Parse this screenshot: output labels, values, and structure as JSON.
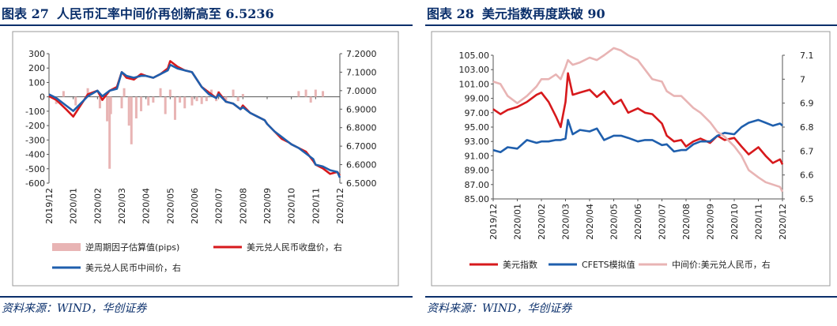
{
  "left": {
    "label": "图表 27",
    "title": "人民币汇率中间价再创新高至 6.5236",
    "source": "资料来源：WIND，华创证券",
    "chart_data": {
      "type": "line",
      "title": "人民币汇率中间价再创新高至 6.5236",
      "categories": [
        "2019/12",
        "2020/01",
        "2020/02",
        "2020/03",
        "2020/04",
        "2020/05",
        "2020/06",
        "2020/07",
        "2020/08",
        "2020/09",
        "2020/10",
        "2020/11",
        "2020/12"
      ],
      "y_left": {
        "min": -600,
        "max": 300,
        "step": 100,
        "ticks": [
          "300",
          "200",
          "100",
          "0",
          "-100",
          "-200",
          "-300",
          "-400",
          "-500",
          "-600"
        ]
      },
      "y_right": {
        "min": 6.5,
        "max": 7.2,
        "step": 0.1,
        "ticks": [
          "7.2000",
          "7.1000",
          "7.0000",
          "6.9000",
          "6.8000",
          "6.7000",
          "6.6000",
          "6.5000"
        ]
      },
      "series": [
        {
          "name": "逆周期因子估算值(pips)",
          "axis": "left",
          "style": "bar",
          "color": "#e8b4b4",
          "x": [
            0.3,
            0.6,
            1.1,
            1.6,
            2.1,
            2.4,
            2.5,
            2.55,
            3.0,
            3.1,
            3.3,
            3.4,
            3.6,
            3.8,
            4.1,
            4.3,
            4.6,
            4.8,
            5.0,
            5.2,
            5.4,
            5.6,
            5.9,
            6.1,
            6.3,
            6.5,
            6.7,
            6.9,
            7.0,
            7.3,
            7.6,
            7.8,
            8.0,
            10.3,
            10.6,
            10.8,
            11.0,
            11.3
          ],
          "values": [
            -50,
            40,
            -60,
            60,
            -80,
            -170,
            -500,
            -120,
            -80,
            60,
            -200,
            -330,
            -150,
            -100,
            -60,
            -40,
            60,
            -120,
            50,
            -160,
            -40,
            -80,
            -60,
            -30,
            -50,
            -30,
            50,
            -30,
            40,
            -40,
            50,
            -30,
            20,
            40,
            50,
            -40,
            50,
            40
          ]
        },
        {
          "name": "美元兑人民币收盘价，右",
          "axis": "right",
          "style": "line",
          "color": "#d7191c",
          "x": [
            0,
            0.3,
            0.7,
            1.0,
            1.3,
            1.6,
            2.0,
            2.2,
            2.5,
            2.8,
            3.0,
            3.2,
            3.5,
            3.8,
            4.0,
            4.3,
            4.6,
            4.9,
            5.0,
            5.3,
            5.6,
            5.9,
            6.0,
            6.3,
            6.6,
            6.9,
            7.0,
            7.3,
            7.6,
            7.9,
            8.0,
            8.3,
            8.6,
            8.9,
            9.0,
            9.3,
            9.6,
            9.9,
            10.0,
            10.3,
            10.6,
            10.9,
            11.0,
            11.3,
            11.6,
            11.9,
            12.0
          ],
          "values": [
            6.97,
            6.95,
            6.9,
            6.86,
            6.92,
            6.98,
            7.0,
            6.95,
            7.0,
            7.02,
            7.1,
            7.07,
            7.06,
            7.09,
            7.08,
            7.07,
            7.09,
            7.12,
            7.16,
            7.13,
            7.11,
            7.1,
            7.08,
            7.02,
            6.99,
            6.96,
            6.99,
            6.94,
            6.93,
            6.9,
            6.92,
            6.88,
            6.86,
            6.84,
            6.82,
            6.78,
            6.74,
            6.72,
            6.71,
            6.69,
            6.67,
            6.62,
            6.6,
            6.58,
            6.55,
            6.56,
            6.54
          ]
        },
        {
          "name": "美元兑人民币中间价，右",
          "axis": "right",
          "style": "line",
          "color": "#1f5fad",
          "x": [
            0,
            0.3,
            0.7,
            1.0,
            1.3,
            1.6,
            2.0,
            2.2,
            2.5,
            2.8,
            3.0,
            3.2,
            3.5,
            3.8,
            4.0,
            4.3,
            4.6,
            4.9,
            5.0,
            5.3,
            5.6,
            5.9,
            6.0,
            6.3,
            6.6,
            6.9,
            7.0,
            7.3,
            7.6,
            7.9,
            8.0,
            8.3,
            8.6,
            8.9,
            9.0,
            9.3,
            9.6,
            9.9,
            10.0,
            10.3,
            10.6,
            10.9,
            11.0,
            11.3,
            11.6,
            11.9,
            12.0
          ],
          "values": [
            6.98,
            6.96,
            6.92,
            6.89,
            6.93,
            6.97,
            7.0,
            6.97,
            7.0,
            7.01,
            7.1,
            7.08,
            7.07,
            7.08,
            7.08,
            7.07,
            7.09,
            7.11,
            7.14,
            7.12,
            7.11,
            7.1,
            7.08,
            7.02,
            6.98,
            6.96,
            6.98,
            6.94,
            6.93,
            6.9,
            6.91,
            6.88,
            6.86,
            6.84,
            6.82,
            6.78,
            6.75,
            6.72,
            6.71,
            6.69,
            6.66,
            6.63,
            6.6,
            6.59,
            6.57,
            6.56,
            6.53
          ]
        }
      ],
      "legend": [
        "逆周期因子估算值(pips)",
        "美元兑人民币收盘价，右",
        "美元兑人民币中间价，右"
      ]
    }
  },
  "right": {
    "label": "图表 28",
    "title": "美元指数再度跌破 90",
    "source": "资料来源：WIND，华创证券",
    "chart_data": {
      "type": "line",
      "title": "美元指数再度跌破 90",
      "categories": [
        "2019/12",
        "2020/01",
        "2020/02",
        "2020/03",
        "2020/04",
        "2020/05",
        "2020/06",
        "2020/07",
        "2020/08",
        "2020/09",
        "2020/10",
        "2020/11",
        "2020/12"
      ],
      "y_left": {
        "min": 85,
        "max": 105,
        "step": 2,
        "ticks": [
          "105.00",
          "103.00",
          "101.00",
          "99.00",
          "97.00",
          "95.00",
          "93.00",
          "91.00",
          "89.00",
          "87.00",
          "85.00"
        ]
      },
      "y_right": {
        "min": 6.5,
        "max": 7.1,
        "step": 0.1,
        "ticks": [
          "7.1",
          "7",
          "6.9",
          "6.8",
          "6.7",
          "6.6",
          "6.5"
        ]
      },
      "series": [
        {
          "name": "美元指数",
          "axis": "left",
          "color": "#d7191c",
          "x": [
            0,
            0.3,
            0.6,
            1.0,
            1.4,
            1.8,
            2.0,
            2.3,
            2.6,
            2.8,
            3.0,
            3.1,
            3.3,
            3.6,
            4.0,
            4.3,
            4.6,
            5.0,
            5.3,
            5.6,
            6.0,
            6.3,
            6.6,
            7.0,
            7.2,
            7.5,
            7.8,
            8.0,
            8.3,
            8.6,
            9.0,
            9.3,
            9.6,
            10.0,
            10.3,
            10.6,
            11.0,
            11.3,
            11.6,
            11.9,
            12.0
          ],
          "values": [
            97.5,
            96.8,
            97.4,
            97.8,
            98.5,
            99.5,
            99.8,
            98.5,
            96.5,
            95.0,
            98.5,
            102.5,
            99.5,
            99.8,
            100.2,
            99.2,
            100.0,
            98.2,
            98.8,
            97.0,
            97.6,
            97.0,
            96.8,
            95.5,
            93.8,
            93.0,
            93.2,
            92.3,
            93.0,
            93.4,
            92.8,
            93.8,
            93.2,
            93.5,
            92.3,
            91.2,
            92.2,
            91.0,
            90.0,
            90.5,
            89.8
          ]
        },
        {
          "name": "CFETS模拟值",
          "axis": "left",
          "color": "#1f5fad",
          "x": [
            0,
            0.3,
            0.6,
            1.0,
            1.4,
            1.8,
            2.0,
            2.3,
            2.6,
            2.8,
            3.0,
            3.1,
            3.3,
            3.6,
            4.0,
            4.3,
            4.6,
            5.0,
            5.3,
            5.6,
            6.0,
            6.3,
            6.6,
            7.0,
            7.2,
            7.5,
            7.8,
            8.0,
            8.3,
            8.6,
            9.0,
            9.3,
            9.6,
            10.0,
            10.3,
            10.6,
            11.0,
            11.3,
            11.6,
            11.9,
            12.0
          ],
          "values": [
            91.8,
            91.5,
            92.2,
            92.0,
            93.2,
            92.8,
            93.0,
            93.0,
            93.2,
            93.2,
            93.4,
            96.0,
            94.0,
            94.6,
            94.4,
            94.8,
            93.2,
            93.8,
            93.8,
            93.5,
            93.0,
            93.2,
            93.2,
            92.5,
            92.6,
            91.6,
            91.8,
            91.8,
            92.6,
            93.0,
            93.0,
            93.8,
            94.2,
            94.0,
            95.0,
            95.6,
            96.0,
            95.6,
            95.2,
            95.5,
            95.2
          ]
        },
        {
          "name": "中间价:美元兑人民币，右",
          "axis": "right",
          "color": "#e8b4b4",
          "x": [
            0,
            0.3,
            0.6,
            1.0,
            1.4,
            1.8,
            2.0,
            2.3,
            2.6,
            2.8,
            3.0,
            3.1,
            3.3,
            3.6,
            4.0,
            4.3,
            4.6,
            5.0,
            5.3,
            5.6,
            6.0,
            6.3,
            6.6,
            7.0,
            7.2,
            7.5,
            7.8,
            8.0,
            8.3,
            8.6,
            9.0,
            9.3,
            9.6,
            10.0,
            10.3,
            10.6,
            11.0,
            11.3,
            11.6,
            11.9,
            12.0
          ],
          "values": [
            6.99,
            6.98,
            6.93,
            6.9,
            6.93,
            6.97,
            7.0,
            7.0,
            7.02,
            7.0,
            7.05,
            7.08,
            7.06,
            7.07,
            7.09,
            7.08,
            7.1,
            7.13,
            7.12,
            7.1,
            7.08,
            7.04,
            7.0,
            6.99,
            6.95,
            6.93,
            6.93,
            6.91,
            6.88,
            6.86,
            6.82,
            6.78,
            6.76,
            6.72,
            6.68,
            6.62,
            6.59,
            6.57,
            6.56,
            6.55,
            6.53
          ]
        }
      ],
      "legend": [
        "美元指数",
        "CFETS模拟值",
        "中间价:美元兑人民币，右"
      ]
    }
  }
}
